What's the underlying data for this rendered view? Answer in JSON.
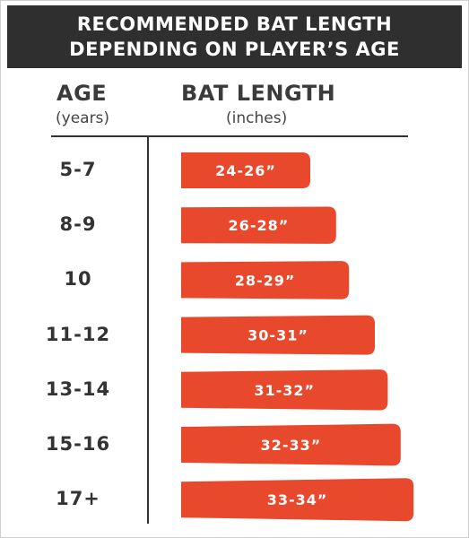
{
  "title": {
    "line1": "RECOMMENDED BAT LENGTH",
    "line2": "DEPENDING ON PLAYER’S AGE"
  },
  "headers": {
    "age": "AGE",
    "age_unit": "(years)",
    "bat_length": "BAT LENGTH",
    "bat_length_unit": "(inches)"
  },
  "colors": {
    "banner": "#2f2f2f",
    "bar": "#e8482c",
    "text_dark": "#333333"
  },
  "chart_data": {
    "type": "table",
    "columns": [
      "AGE",
      "BAT LENGTH"
    ],
    "rows": [
      {
        "age": "5-7",
        "length_label": "24-26”",
        "min": 24,
        "max": 26
      },
      {
        "age": "8-9",
        "length_label": "26-28”",
        "min": 26,
        "max": 28
      },
      {
        "age": "10",
        "length_label": "28-29”",
        "min": 28,
        "max": 29
      },
      {
        "age": "11-12",
        "length_label": "30-31”",
        "min": 30,
        "max": 31
      },
      {
        "age": "13-14",
        "length_label": "31-32”",
        "min": 31,
        "max": 32
      },
      {
        "age": "15-16",
        "length_label": "32-33”",
        "min": 32,
        "max": 33
      },
      {
        "age": "17+",
        "length_label": "33-34”",
        "min": 33,
        "max": 34
      }
    ]
  }
}
